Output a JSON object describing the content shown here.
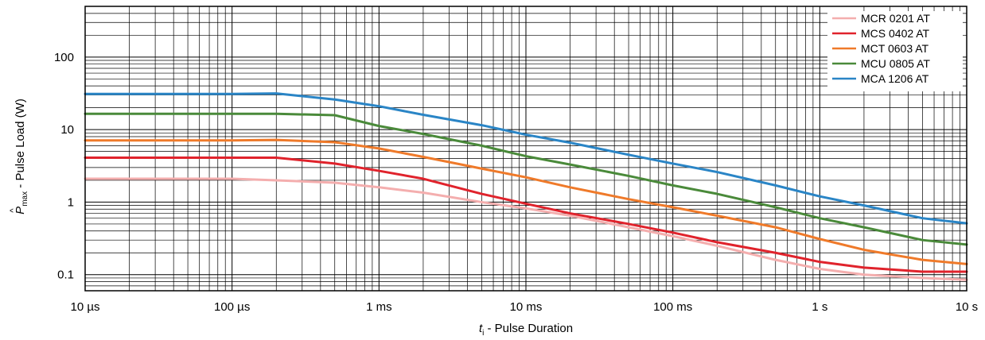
{
  "chart_data": {
    "type": "line",
    "x_scale": "log",
    "y_scale": "log",
    "grid": true,
    "legend_position": "top-right",
    "xlabel": {
      "var": "t",
      "sub": "i",
      "text": " - Pulse Duration"
    },
    "ylabel": {
      "var": "P",
      "sub": "max",
      "text": " - Pulse Load (W)"
    },
    "xlim": [
      "10 µs",
      "10 s"
    ],
    "ylim": [
      0.06,
      500
    ],
    "x_ticks": [
      {
        "value": 1e-05,
        "label": "10 µs"
      },
      {
        "value": 0.0001,
        "label": "100 µs"
      },
      {
        "value": 0.001,
        "label": "1 ms"
      },
      {
        "value": 0.01,
        "label": "10 ms"
      },
      {
        "value": 0.1,
        "label": "100 ms"
      },
      {
        "value": 1,
        "label": "1 s"
      },
      {
        "value": 10,
        "label": "10 s"
      }
    ],
    "y_ticks": [
      {
        "value": 0.1,
        "label": "0.1"
      },
      {
        "value": 1,
        "label": "1"
      },
      {
        "value": 10,
        "label": "10"
      },
      {
        "value": 100,
        "label": "100"
      }
    ],
    "x_unit": "s",
    "series": [
      {
        "name": "MCR 0201 AT",
        "color": "#f4aeae",
        "x": [
          1e-05,
          0.0001,
          0.0002,
          0.0005,
          0.001,
          0.002,
          0.005,
          0.01,
          0.02,
          0.05,
          0.1,
          0.2,
          0.5,
          1,
          2,
          5,
          10
        ],
        "y": [
          2.1,
          2.1,
          2.0,
          1.85,
          1.6,
          1.35,
          1.0,
          0.82,
          0.65,
          0.45,
          0.34,
          0.25,
          0.16,
          0.12,
          0.1,
          0.09,
          0.085
        ]
      },
      {
        "name": "MCS 0402 AT",
        "color": "#e0232c",
        "x": [
          1e-05,
          0.0001,
          0.0002,
          0.0005,
          0.001,
          0.002,
          0.005,
          0.01,
          0.02,
          0.05,
          0.1,
          0.2,
          0.5,
          1,
          2,
          5,
          10
        ],
        "y": [
          4.1,
          4.1,
          4.1,
          3.4,
          2.7,
          2.1,
          1.3,
          0.95,
          0.7,
          0.5,
          0.38,
          0.28,
          0.2,
          0.15,
          0.125,
          0.11,
          0.11
        ]
      },
      {
        "name": "MCT 0603 AT",
        "color": "#ef7a2a",
        "x": [
          1e-05,
          0.0001,
          0.0002,
          0.0005,
          0.001,
          0.002,
          0.005,
          0.01,
          0.02,
          0.05,
          0.1,
          0.2,
          0.5,
          1,
          2,
          5,
          10
        ],
        "y": [
          7.1,
          7.1,
          7.2,
          6.7,
          5.5,
          4.2,
          2.9,
          2.2,
          1.6,
          1.1,
          0.85,
          0.65,
          0.45,
          0.31,
          0.22,
          0.16,
          0.14
        ]
      },
      {
        "name": "MCU 0805 AT",
        "color": "#4a8a3a",
        "x": [
          1e-05,
          0.0001,
          0.0002,
          0.0005,
          0.001,
          0.002,
          0.005,
          0.01,
          0.02,
          0.05,
          0.1,
          0.2,
          0.5,
          1,
          2,
          5,
          10
        ],
        "y": [
          16.5,
          16.5,
          16.5,
          15.8,
          11.2,
          8.7,
          6.0,
          4.3,
          3.3,
          2.3,
          1.7,
          1.3,
          0.85,
          0.6,
          0.45,
          0.3,
          0.26
        ]
      },
      {
        "name": "MCA 1206 AT",
        "color": "#2a85c6",
        "x": [
          1e-05,
          0.0001,
          0.0002,
          0.0005,
          0.001,
          0.002,
          0.005,
          0.01,
          0.02,
          0.05,
          0.1,
          0.2,
          0.5,
          1,
          2,
          5,
          10
        ],
        "y": [
          31,
          31,
          31.5,
          26,
          21,
          16,
          11.5,
          8.5,
          6.6,
          4.5,
          3.4,
          2.6,
          1.7,
          1.2,
          0.9,
          0.6,
          0.51
        ]
      }
    ]
  }
}
